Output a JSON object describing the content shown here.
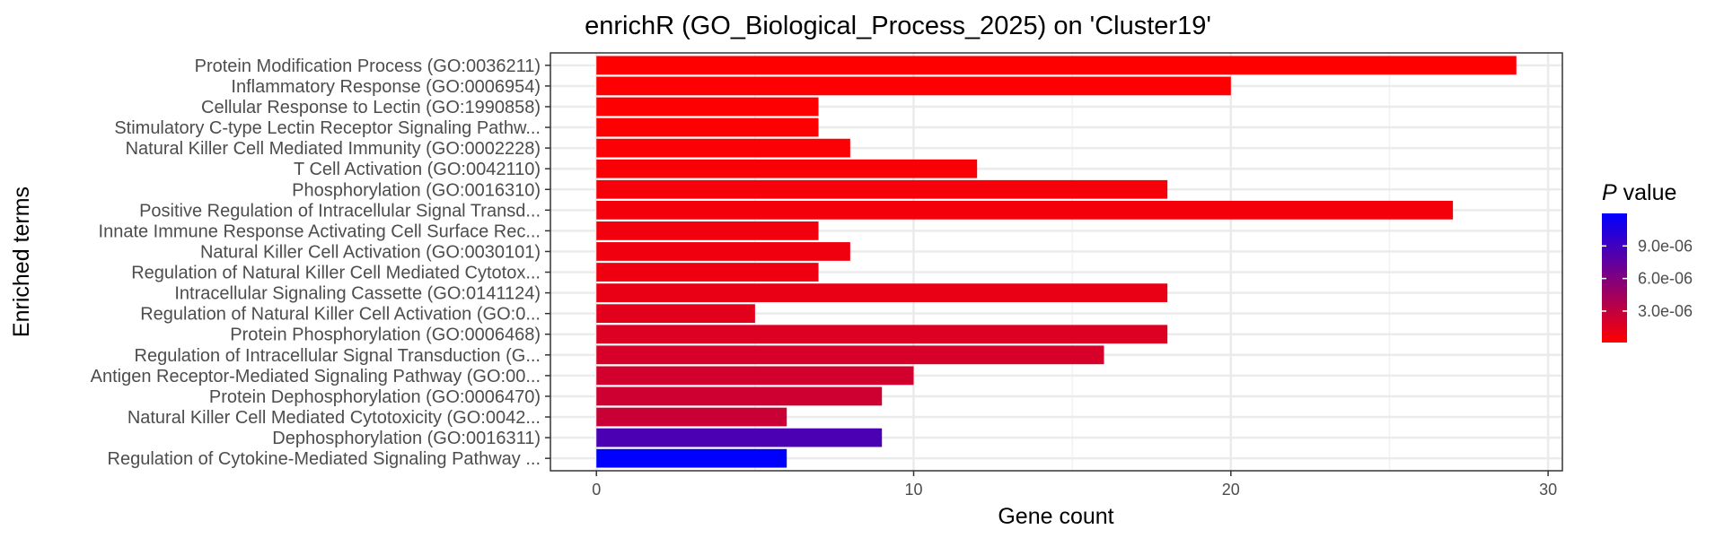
{
  "chart_data": {
    "type": "bar",
    "orientation": "horizontal",
    "title": "enrichR (GO_Biological_Process_2025) on 'Cluster19'",
    "xlabel": "Gene count",
    "ylabel": "Enriched terms",
    "xlim": [
      -1.45,
      30.45
    ],
    "xticks": [
      0,
      10,
      20,
      30
    ],
    "grid": true,
    "legend": {
      "title_symbol": "P",
      "title_text": " value",
      "placement": "right",
      "min": 1e-07,
      "max": 1.2e-05,
      "low_color": "#ff0000",
      "high_color": "#0000ff",
      "ticks": [
        {
          "value": 3e-06,
          "label": "3.0e-06"
        },
        {
          "value": 6e-06,
          "label": "6.0e-06"
        },
        {
          "value": 9e-06,
          "label": "9.0e-06"
        }
      ]
    },
    "bars": [
      {
        "label": "Protein Modification Process (GO:0036211)",
        "value": 29,
        "pvalue": 1e-07
      },
      {
        "label": "Inflammatory Response (GO:0006954)",
        "value": 20,
        "pvalue": 1.5e-07
      },
      {
        "label": "Cellular Response to Lectin (GO:1990858)",
        "value": 7,
        "pvalue": 2e-07
      },
      {
        "label": "Stimulatory C-type Lectin Receptor Signaling Pathw...",
        "value": 7,
        "pvalue": 2e-07
      },
      {
        "label": "Natural Killer Cell Mediated Immunity (GO:0002228)",
        "value": 8,
        "pvalue": 3e-07
      },
      {
        "label": "T Cell Activation (GO:0042110)",
        "value": 12,
        "pvalue": 4e-07
      },
      {
        "label": "Phosphorylation (GO:0016310)",
        "value": 18,
        "pvalue": 5e-07
      },
      {
        "label": "Positive Regulation of Intracellular Signal Transd...",
        "value": 27,
        "pvalue": 6e-07
      },
      {
        "label": "Innate Immune Response Activating Cell Surface Rec...",
        "value": 7,
        "pvalue": 7e-07
      },
      {
        "label": "Natural Killer Cell Activation (GO:0030101)",
        "value": 8,
        "pvalue": 8e-07
      },
      {
        "label": "Regulation of Natural Killer Cell Mediated Cytotox...",
        "value": 7,
        "pvalue": 9e-07
      },
      {
        "label": "Intracellular Signaling Cassette (GO:0141124)",
        "value": 18,
        "pvalue": 1.1e-06
      },
      {
        "label": "Regulation of Natural Killer Cell Activation (GO:0...",
        "value": 5,
        "pvalue": 1.4e-06
      },
      {
        "label": "Protein Phosphorylation (GO:0006468)",
        "value": 18,
        "pvalue": 1.7e-06
      },
      {
        "label": "Regulation of Intracellular Signal Transduction (G...",
        "value": 16,
        "pvalue": 2e-06
      },
      {
        "label": "Antigen Receptor-Mediated Signaling Pathway (GO:00...",
        "value": 10,
        "pvalue": 2.2e-06
      },
      {
        "label": "Protein Dephosphorylation (GO:0006470)",
        "value": 9,
        "pvalue": 2.4e-06
      },
      {
        "label": "Natural Killer Cell Mediated Cytotoxicity (GO:0042...",
        "value": 6,
        "pvalue": 2.6e-06
      },
      {
        "label": "Dephosphorylation (GO:0016311)",
        "value": 9,
        "pvalue": 8.5e-06
      },
      {
        "label": "Regulation of Cytokine-Mediated Signaling Pathway ...",
        "value": 6,
        "pvalue": 1.2e-05
      }
    ]
  }
}
